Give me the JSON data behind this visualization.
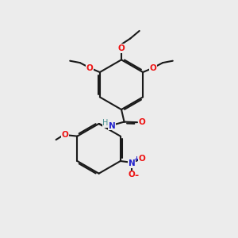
{
  "bg_color": "#ececec",
  "bond_color": "#1a1a1a",
  "oxygen_color": "#ee1111",
  "nitrogen_color": "#2222cc",
  "h_color": "#4a9090",
  "line_width": 1.5,
  "fig_size": [
    3.0,
    3.0
  ],
  "dpi": 100,
  "xlim": [
    0,
    10
  ],
  "ylim": [
    0,
    10
  ]
}
